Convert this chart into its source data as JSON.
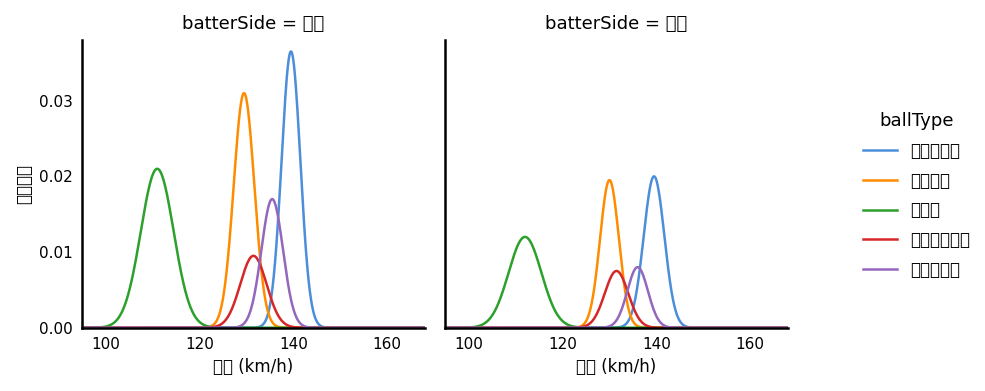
{
  "title_left": "batterSide = 左打",
  "title_right": "batterSide = 右打",
  "xlabel": "球速 (km/h)",
  "ylabel": "確率密度",
  "legend_title": "ballType",
  "legend_labels": [
    "ストレート",
    "シンカー",
    "カーブ",
    "カットボール",
    "ツーシーム"
  ],
  "colors": [
    "#4C8EDA",
    "#FF8C00",
    "#2CA02C",
    "#D62728",
    "#9467BD"
  ],
  "xlim": [
    95,
    168
  ],
  "ylim": [
    0.0,
    0.038
  ],
  "yticks": [
    0.0,
    0.01,
    0.02,
    0.03
  ],
  "xticks": [
    100,
    120,
    140,
    160
  ],
  "pitch_params": {
    "left": {
      "straight": {
        "mean": 139.5,
        "std": 2.0,
        "peak": 0.0365
      },
      "sinker": {
        "mean": 129.5,
        "std": 2.2,
        "peak": 0.031
      },
      "curve": {
        "mean": 111.0,
        "std": 3.5,
        "peak": 0.021
      },
      "cutter": {
        "mean": 131.5,
        "std": 2.8,
        "peak": 0.0095
      },
      "twoseam": {
        "mean": 135.5,
        "std": 2.3,
        "peak": 0.017
      }
    },
    "right": {
      "straight": {
        "mean": 139.5,
        "std": 2.2,
        "peak": 0.02
      },
      "sinker": {
        "mean": 130.0,
        "std": 2.0,
        "peak": 0.0195
      },
      "curve": {
        "mean": 112.0,
        "std": 3.5,
        "peak": 0.012
      },
      "cutter": {
        "mean": 131.5,
        "std": 2.5,
        "peak": 0.0075
      },
      "twoseam": {
        "mean": 136.0,
        "std": 2.2,
        "peak": 0.008
      }
    }
  },
  "background_color": "#FFFFFF",
  "spine_color": "#000000",
  "tick_label_fontsize": 11,
  "axis_label_fontsize": 12,
  "title_fontsize": 13,
  "legend_fontsize": 12,
  "linewidth": 1.8
}
